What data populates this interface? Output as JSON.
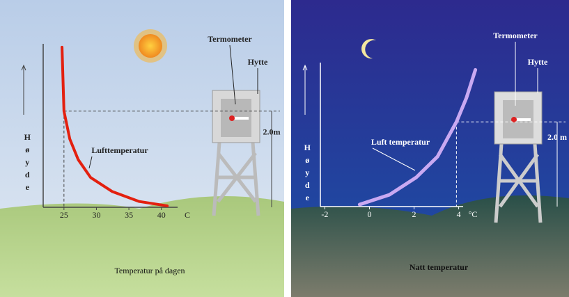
{
  "chart_data": [
    {
      "type": "line",
      "title": "Temperatur på dagen",
      "y_label": "Høyde",
      "x_label": "C",
      "x": [
        24.7,
        25,
        25.9,
        27.2,
        29.1,
        32.4,
        36.6,
        40.9
      ],
      "values": [
        3.33,
        2.0,
        1.42,
        0.99,
        0.62,
        0.33,
        0.12,
        0.03
      ],
      "color": "#e3200f",
      "xlim": [
        21.8,
        42.5
      ],
      "xticks": [
        25,
        30,
        35,
        40
      ],
      "ylim": [
        0,
        3.4
      ],
      "reference": {
        "value": 2.0,
        "label": "2.0m"
      },
      "annotations": {
        "thermometer": "Termometer",
        "hut": "Hytte",
        "curve": "Lufttemperatur"
      }
    },
    {
      "type": "line",
      "title": "Natt temperatur",
      "y_label": "Høyde",
      "x_label": "°C",
      "x": [
        -0.44,
        0.9,
        2.1,
        3.05,
        3.9,
        4.35,
        4.75
      ],
      "values": [
        0.05,
        0.28,
        0.69,
        1.18,
        2.0,
        2.57,
        3.23
      ],
      "color": "#c9a9f2",
      "xlim": [
        -2.2,
        4.2
      ],
      "xticks": [
        -2,
        0,
        2,
        4
      ],
      "ylim": [
        0,
        3.4
      ],
      "reference": {
        "value": 2.0,
        "label": "2.0 m"
      },
      "annotations": {
        "thermometer": "Termometer",
        "hut": "Hytte",
        "curve": "Luft temperatur"
      }
    }
  ]
}
